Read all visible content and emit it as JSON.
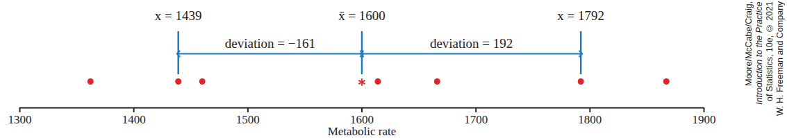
{
  "chart_data": {
    "type": "scatter",
    "x_label": "Metabolic rate",
    "points": {
      "x": [
        1362,
        1439,
        1460,
        1614,
        1666,
        1792,
        1867
      ],
      "color": "#e0262b",
      "marker": "circle"
    },
    "mean": {
      "x": 1600,
      "color": "#e0262b",
      "marker": "asterisk"
    },
    "reference_lines": {
      "color": "#1b7cc0",
      "lines": [
        {
          "x": 1439,
          "label": "x = 1439"
        },
        {
          "x": 1600,
          "label": "x̄ = 1600"
        },
        {
          "x": 1792,
          "label": "x = 1792"
        }
      ]
    },
    "deviations": [
      {
        "from": 1600,
        "to": 1439,
        "label": "deviation = −161"
      },
      {
        "from": 1600,
        "to": 1792,
        "label": "deviation = 192"
      }
    ],
    "xlim": [
      1300,
      1900
    ],
    "xticks": [
      1300,
      1400,
      1500,
      1600,
      1700,
      1800,
      1900
    ],
    "tick_labels": "x",
    "credit": [
      "Moore/McCabe/Craig,",
      "Introduction to the Practice",
      "of Statistics, 10e, © 2021",
      "W. H. Freeman and Company"
    ]
  }
}
